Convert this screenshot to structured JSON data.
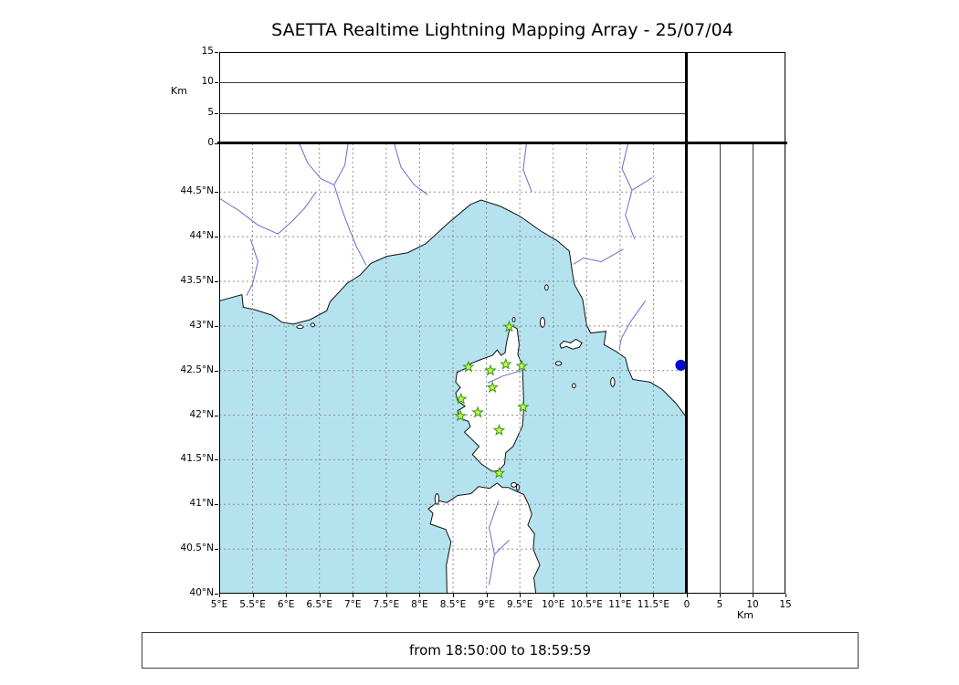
{
  "title": "SAETTA Realtime Lightning Mapping Array - 25/07/04",
  "footer": {
    "time_range": "from 18:50:00 to 18:59:59"
  },
  "axes": {
    "km_label_top": "Km",
    "km_label_right": "Km"
  },
  "colors": {
    "sea": "#b4e3ef",
    "land": "#ffffff",
    "coastline": "#111111",
    "river": "#6b6bd6",
    "grid": "#8f8f8f",
    "panel_grid": "#3c3c3c",
    "station_fill": "#ccf94f",
    "station_stroke": "#3f9e1a",
    "source_dot": "#0008cf"
  },
  "chart_data": {
    "type": "scatter",
    "title": "SAETTA Realtime Lightning Mapping Array - 25/07/04",
    "time_window": "from 18:50:00 to 18:59:59",
    "panels": {
      "top": "altitude (Km) vs longitude - empty",
      "corner": "altitude scale box - empty",
      "right": "altitude (Km) vs latitude - empty",
      "main": "plan view map of Corsica / Ligurian Sea region with LMA stations"
    },
    "map_extent": {
      "lon_min": 5.0,
      "lon_max": 12.0,
      "lat_min": 40.0,
      "lat_max": 45.045
    },
    "grid": "dashed 0.5 degree graticule",
    "lon_ticks": [
      {
        "value": 5.0,
        "label": "5°E"
      },
      {
        "value": 5.5,
        "label": "5.5°E"
      },
      {
        "value": 6.0,
        "label": "6°E"
      },
      {
        "value": 6.5,
        "label": "6.5°E"
      },
      {
        "value": 7.0,
        "label": "7°E"
      },
      {
        "value": 7.5,
        "label": "7.5°E"
      },
      {
        "value": 8.0,
        "label": "8°E"
      },
      {
        "value": 8.5,
        "label": "8.5°E"
      },
      {
        "value": 9.0,
        "label": "9°E"
      },
      {
        "value": 9.5,
        "label": "9.5°E"
      },
      {
        "value": 10.0,
        "label": "10°E"
      },
      {
        "value": 10.5,
        "label": "10.5°E"
      },
      {
        "value": 11.0,
        "label": "11°E"
      },
      {
        "value": 11.5,
        "label": "11.5°E"
      }
    ],
    "lat_ticks": [
      {
        "value": 40.0,
        "label": "40°N"
      },
      {
        "value": 40.5,
        "label": "40.5°N"
      },
      {
        "value": 41.0,
        "label": "41°N"
      },
      {
        "value": 41.5,
        "label": "41.5°N"
      },
      {
        "value": 42.0,
        "label": "42°N"
      },
      {
        "value": 42.5,
        "label": "42.5°N"
      },
      {
        "value": 43.0,
        "label": "43°N"
      },
      {
        "value": 43.5,
        "label": "43.5°N"
      },
      {
        "value": 44.0,
        "label": "44°N"
      },
      {
        "value": 44.5,
        "label": "44.5°N"
      }
    ],
    "km_range": [
      0,
      15
    ],
    "km_ticks": [
      {
        "value": 0,
        "label": "0"
      },
      {
        "value": 5,
        "label": "5"
      },
      {
        "value": 10,
        "label": "10"
      },
      {
        "value": 15,
        "label": "15"
      }
    ],
    "stations_marker": "green star",
    "stations": [
      {
        "lon": 9.34,
        "lat": 42.99
      },
      {
        "lon": 8.73,
        "lat": 42.54
      },
      {
        "lon": 9.06,
        "lat": 42.5
      },
      {
        "lon": 9.29,
        "lat": 42.57
      },
      {
        "lon": 9.53,
        "lat": 42.55
      },
      {
        "lon": 9.09,
        "lat": 42.31
      },
      {
        "lon": 8.62,
        "lat": 42.18
      },
      {
        "lon": 9.55,
        "lat": 42.09
      },
      {
        "lon": 8.61,
        "lat": 41.99
      },
      {
        "lon": 8.87,
        "lat": 42.03
      },
      {
        "lon": 9.19,
        "lat": 41.83
      },
      {
        "lon": 9.19,
        "lat": 41.35
      }
    ],
    "sources_marker": "blue filled circle",
    "sources": [
      {
        "lon": 11.91,
        "lat": 42.56
      }
    ],
    "altitude_points": []
  }
}
